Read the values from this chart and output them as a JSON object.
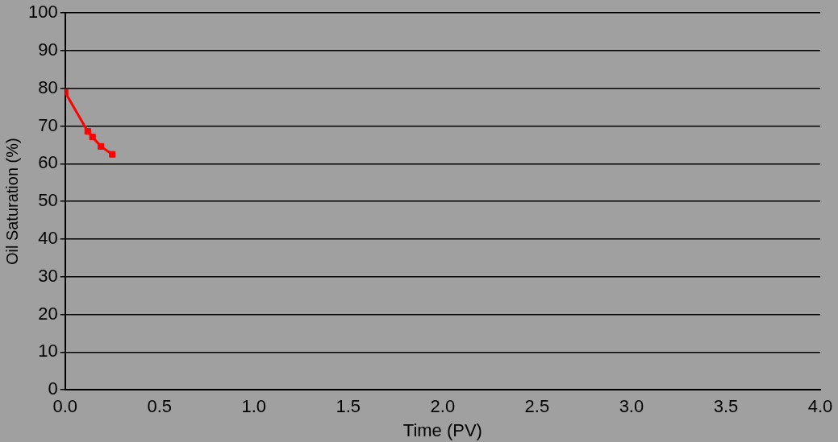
{
  "chart_data": {
    "type": "line",
    "xlabel": "Time (PV)",
    "ylabel": "Oil Saturation (%)",
    "series": [
      {
        "color": "#ff0000",
        "x": [
          0,
          0.12,
          0.145,
          0.19,
          0.25
        ],
        "values": [
          79,
          68.6,
          67.1,
          64.6,
          62.5
        ]
      }
    ],
    "xlim": [
      0,
      4
    ],
    "xticks": [
      {
        "value": 0,
        "label": "0.0"
      },
      {
        "value": 0.5,
        "label": "0.5"
      },
      {
        "value": 1,
        "label": "1.0"
      },
      {
        "value": 1.5,
        "label": "1.5"
      },
      {
        "value": 2,
        "label": "2.0"
      },
      {
        "value": 2.5,
        "label": "2.5"
      },
      {
        "value": 3,
        "label": "3.0"
      },
      {
        "value": 3.5,
        "label": "3.5"
      },
      {
        "value": 4,
        "label": "4.0"
      }
    ],
    "ylim": [
      0,
      100
    ],
    "yticks": [
      0,
      10,
      20,
      30,
      40,
      50,
      60,
      70,
      80,
      90,
      100
    ],
    "grid": "y",
    "legend": false,
    "marker": "square",
    "line_style": "solid"
  }
}
